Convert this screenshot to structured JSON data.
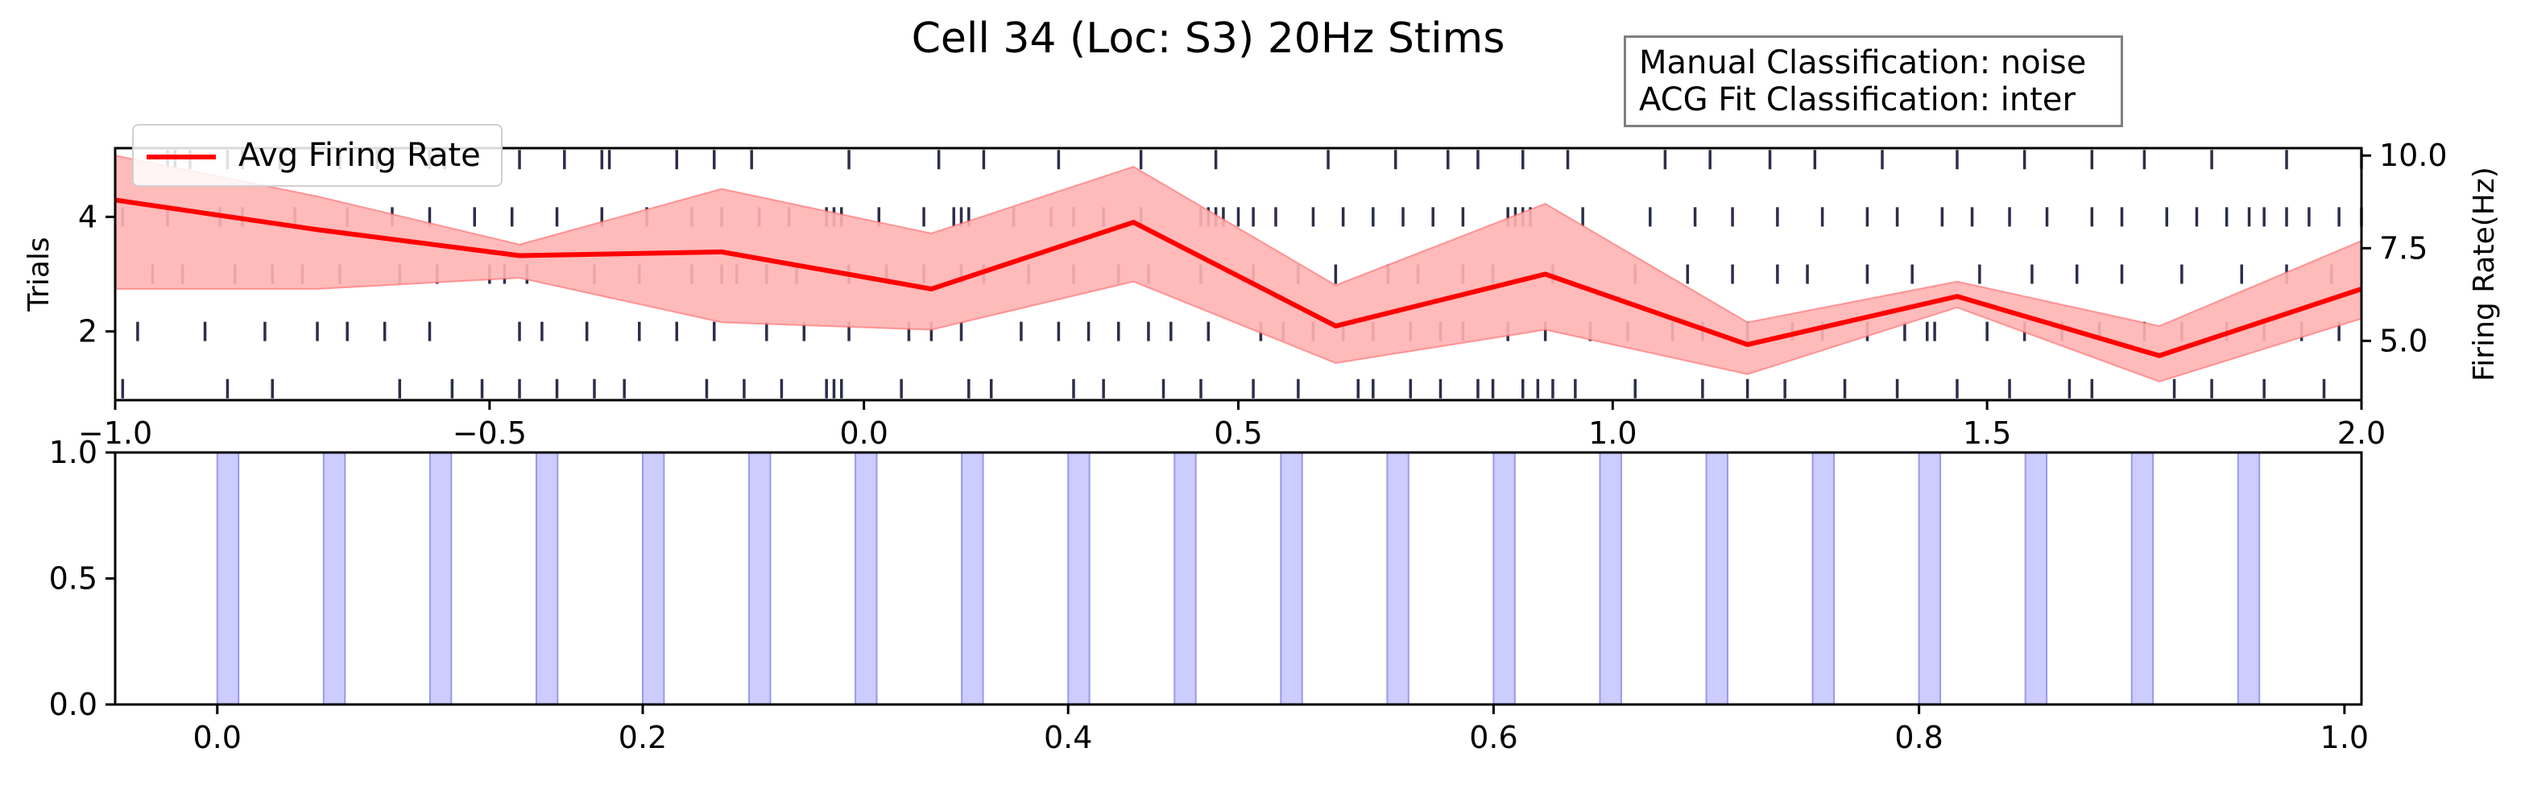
{
  "figure_title": "Cell 34 (Loc: S3) 20Hz Stims",
  "classification": {
    "manual": "Manual Classification: noise",
    "acg_fit": "ACG Fit Classification: inter"
  },
  "colors": {
    "rate_line": "#ff0000",
    "rate_band": "#ffb3b3",
    "spikes": "#2b2f4a",
    "stim": "#ccccff",
    "stim_edge": "#9999ee"
  },
  "chart_data": [
    {
      "type": "line",
      "title": "",
      "xlabel": "",
      "ylabel": "Trials",
      "ylabel_right": "Firing Rate(Hz)",
      "xlim": [
        -1.0,
        2.0
      ],
      "ylim": [
        0.8,
        5.2
      ],
      "ylim_right": [
        3.4,
        10.2
      ],
      "x_ticks": [
        -1.0,
        -0.5,
        0.0,
        0.5,
        1.0,
        1.5,
        2.0
      ],
      "x_tick_labels": [
        "−1.0",
        "−0.5",
        "0.0",
        "0.5",
        "1.0",
        "1.5",
        "2.0"
      ],
      "y_ticks": [
        2,
        4
      ],
      "y_tick_labels": [
        "2",
        "4"
      ],
      "y_ticks_right": [
        5.0,
        7.5,
        10.0
      ],
      "y_tick_labels_right": [
        "5.0",
        "7.5",
        "10.0"
      ],
      "legend": {
        "entries": [
          "Avg Firing Rate"
        ],
        "placement": "upper-left"
      },
      "grid": false,
      "series": [
        {
          "name": "Avg Firing Rate",
          "axis": "right",
          "x": [
            -1.0,
            -0.73,
            -0.46,
            -0.19,
            0.09,
            0.36,
            0.63,
            0.91,
            1.18,
            1.46,
            1.73,
            2.0
          ],
          "y": [
            8.8,
            8.0,
            7.3,
            7.4,
            6.4,
            8.2,
            5.4,
            6.8,
            4.9,
            6.2,
            4.6,
            6.4
          ],
          "band_upper": [
            10.0,
            8.9,
            7.6,
            9.1,
            7.9,
            9.7,
            6.5,
            8.7,
            5.5,
            6.6,
            5.4,
            7.7
          ],
          "band_lower": [
            6.4,
            6.4,
            6.7,
            5.5,
            5.3,
            6.6,
            4.4,
            5.3,
            4.1,
            5.9,
            3.9,
            5.6
          ]
        }
      ],
      "raster": {
        "trials": [
          1,
          2,
          3,
          4,
          5
        ],
        "spikes": [
          [
            -0.99,
            -0.85,
            -0.79,
            -0.62,
            -0.55,
            -0.51,
            -0.46,
            -0.41,
            -0.36,
            -0.32,
            -0.21,
            -0.16,
            -0.11,
            -0.05,
            -0.04,
            -0.03,
            0.05,
            0.14,
            0.17,
            0.28,
            0.32,
            0.4,
            0.45,
            0.52,
            0.58,
            0.66,
            0.68,
            0.73,
            0.77,
            0.82,
            0.84,
            0.88,
            0.9,
            0.92,
            0.95,
            1.03,
            1.12,
            1.18,
            1.23,
            1.31,
            1.38,
            1.46,
            1.53,
            1.61,
            1.64,
            1.75,
            1.8,
            1.87,
            1.95
          ],
          [
            -0.97,
            -0.88,
            -0.8,
            -0.73,
            -0.69,
            -0.64,
            -0.58,
            -0.46,
            -0.43,
            -0.37,
            -0.3,
            -0.25,
            -0.2,
            -0.13,
            -0.08,
            -0.02,
            0.06,
            0.09,
            0.13,
            0.21,
            0.26,
            0.3,
            0.34,
            0.38,
            0.41,
            0.46,
            0.53,
            0.56,
            0.6,
            0.64,
            0.68,
            0.73,
            0.77,
            0.8,
            0.86,
            0.91,
            0.97,
            1.02,
            1.08,
            1.12,
            1.18,
            1.24,
            1.28,
            1.34,
            1.39,
            1.42,
            1.43,
            1.5,
            1.55,
            1.6,
            1.65,
            1.71,
            1.76,
            1.82,
            1.87,
            1.92,
            1.97
          ],
          [
            -0.95,
            -0.91,
            -0.84,
            -0.79,
            -0.75,
            -0.7,
            -0.62,
            -0.57,
            -0.5,
            -0.48,
            -0.45,
            -0.36,
            -0.3,
            -0.23,
            -0.19,
            -0.17,
            -0.13,
            -0.09,
            -0.02,
            0.03,
            0.08,
            0.13,
            0.16,
            0.22,
            0.28,
            0.34,
            0.38,
            0.45,
            0.52,
            0.58,
            0.63,
            0.7,
            0.74,
            0.8,
            0.84,
            0.92,
            1.03,
            1.1,
            1.16,
            1.22,
            1.26,
            1.34,
            1.4,
            1.49,
            1.56,
            1.62,
            1.68,
            1.76,
            1.84,
            1.9,
            1.96
          ],
          [
            -0.99,
            -0.93,
            -0.86,
            -0.83,
            -0.76,
            -0.69,
            -0.63,
            -0.58,
            -0.52,
            -0.47,
            -0.41,
            -0.35,
            -0.29,
            -0.23,
            -0.19,
            -0.14,
            -0.1,
            -0.05,
            -0.04,
            -0.03,
            0.02,
            0.08,
            0.12,
            0.13,
            0.14,
            0.2,
            0.25,
            0.28,
            0.32,
            0.37,
            0.45,
            0.46,
            0.47,
            0.48,
            0.5,
            0.52,
            0.55,
            0.6,
            0.64,
            0.68,
            0.72,
            0.76,
            0.8,
            0.86,
            0.87,
            0.88,
            0.89,
            0.96,
            1.05,
            1.11,
            1.16,
            1.22,
            1.28,
            1.34,
            1.38,
            1.44,
            1.48,
            1.53,
            1.58,
            1.64,
            1.68,
            1.74,
            1.78,
            1.82,
            1.85,
            1.87,
            1.9,
            1.93,
            1.97,
            2.0
          ],
          [
            -0.93,
            -0.92,
            -0.9,
            -0.85,
            -0.83,
            -0.78,
            -0.7,
            -0.65,
            -0.58,
            -0.56,
            -0.46,
            -0.4,
            -0.35,
            -0.34,
            -0.25,
            -0.2,
            -0.15,
            -0.02,
            0.1,
            0.16,
            0.26,
            0.37,
            0.47,
            0.62,
            0.71,
            0.78,
            0.82,
            0.88,
            0.94,
            1.07,
            1.13,
            1.21,
            1.27,
            1.36,
            1.46,
            1.55,
            1.64,
            1.71,
            1.8,
            1.9,
            2.0
          ]
        ]
      }
    },
    {
      "type": "bar",
      "title": "",
      "xlabel": "",
      "ylabel": "",
      "xlim": [
        -0.048,
        1.008
      ],
      "ylim": [
        0.0,
        1.0
      ],
      "x_ticks": [
        0.0,
        0.2,
        0.4,
        0.6,
        0.8,
        1.0
      ],
      "x_tick_labels": [
        "0.0",
        "0.2",
        "0.4",
        "0.6",
        "0.8",
        "1.0"
      ],
      "y_ticks": [
        0.0,
        0.5,
        1.0
      ],
      "y_tick_labels": [
        "0.0",
        "0.5",
        "1.0"
      ],
      "grid": false,
      "stim_duration": 0.01,
      "stim_onsets": [
        0.0,
        0.05,
        0.1,
        0.15,
        0.2,
        0.25,
        0.3,
        0.35,
        0.4,
        0.45,
        0.5,
        0.55,
        0.6,
        0.65,
        0.7,
        0.75,
        0.8,
        0.85,
        0.9,
        0.95
      ]
    }
  ]
}
